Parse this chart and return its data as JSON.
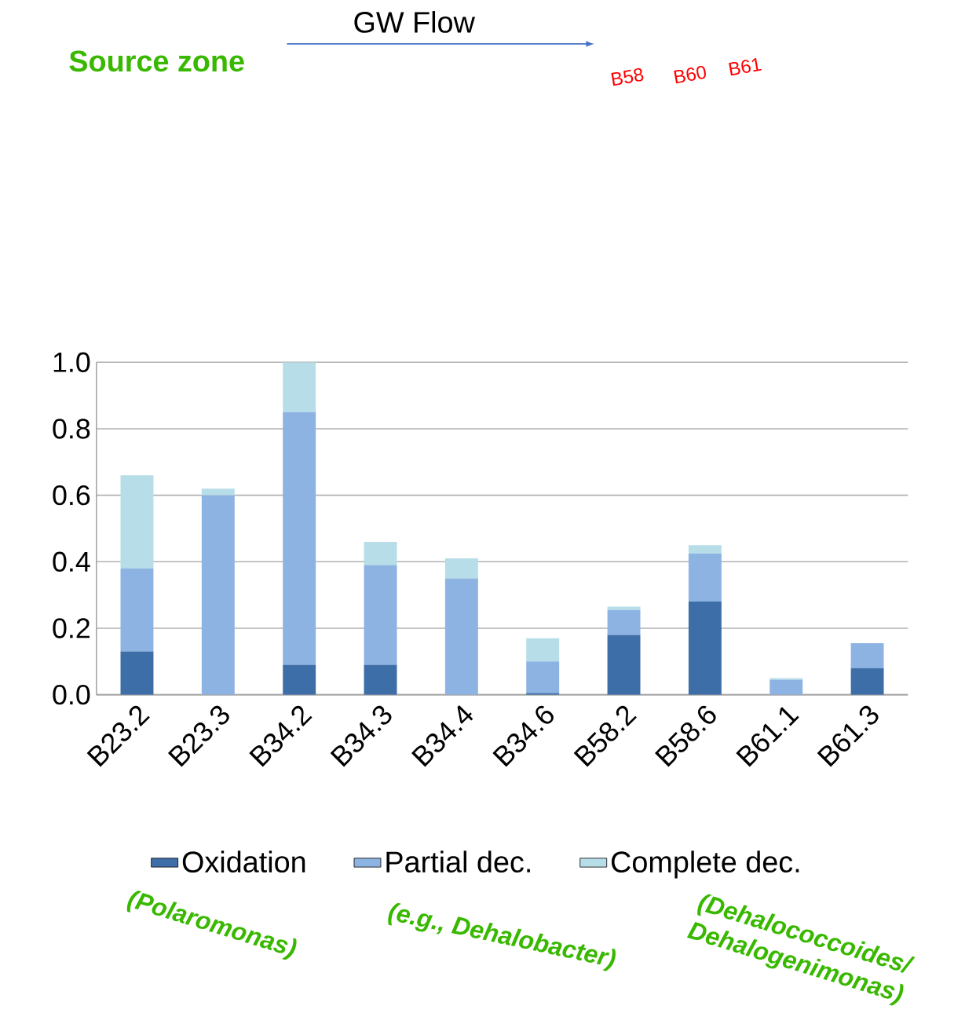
{
  "chart_data": {
    "type": "bar",
    "stacked": true,
    "categories": [
      "B23.2",
      "B23.3",
      "B34.2",
      "B34.3",
      "B34.4",
      "B34.6",
      "B58.2",
      "B58.6",
      "B61.1",
      "B61.3"
    ],
    "series": [
      {
        "name": "Oxidation",
        "color": "#3d6ea8",
        "values": [
          0.13,
          0,
          0.09,
          0.09,
          0,
          0.005,
          0.18,
          0.28,
          0,
          0.08
        ]
      },
      {
        "name": "Partial dec.",
        "color": "#8db3e2",
        "values": [
          0.25,
          0.6,
          0.76,
          0.3,
          0.35,
          0.095,
          0.075,
          0.145,
          0.045,
          0.075
        ]
      },
      {
        "name": "Complete dec.",
        "color": "#b7dde8",
        "values": [
          0.28,
          0.02,
          0.15,
          0.07,
          0.06,
          0.07,
          0.01,
          0.025,
          0.005,
          0
        ]
      }
    ],
    "ylim": [
      0,
      1
    ],
    "yticks": [
      {
        "value": 0,
        "label": "0.0"
      },
      0.2,
      0.4,
      0.6,
      0.8,
      {
        "value": 1,
        "label": "1.0"
      }
    ],
    "grid": "y",
    "legend": "bottom",
    "annotations": [
      "GW Flow",
      "Source zone",
      "B58",
      "B60",
      "B61",
      "(Polaromonas)",
      "(e.g., Dehalobacter)",
      "(Dehalococcoides/ Dehalogenimonas)"
    ]
  }
}
